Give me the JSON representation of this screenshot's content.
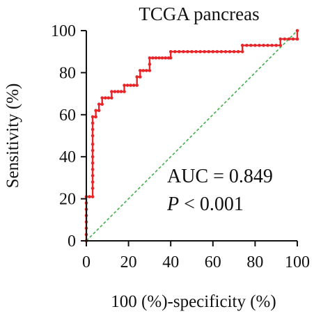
{
  "chart_data": {
    "type": "line",
    "title": "TCGA pancreas",
    "xlabel": "100 (%)-specificity (%)",
    "ylabel": "Sensitivity (%)",
    "xlim": [
      0,
      100
    ],
    "ylim": [
      0,
      100
    ],
    "x_ticks": [
      "0",
      "20",
      "40",
      "60",
      "80",
      "100"
    ],
    "y_ticks": [
      "0",
      "20",
      "40",
      "60",
      "80",
      "100"
    ],
    "grid": false,
    "annotations": {
      "auc": "AUC = 0.849",
      "p_symbol": "P",
      "p_rest": " < 0.001"
    },
    "colors": {
      "roc": "#e8262a",
      "reference": "#3fae49",
      "axis": "#111111"
    },
    "series": [
      {
        "values": [
          [
            0,
            0
          ],
          [
            0,
            3
          ],
          [
            0,
            6
          ],
          [
            0,
            9
          ],
          [
            0,
            12
          ],
          [
            0,
            15
          ],
          [
            0,
            18
          ],
          [
            0,
            21
          ],
          [
            1.5,
            21
          ],
          [
            3,
            21
          ],
          [
            3,
            25
          ],
          [
            3,
            28
          ],
          [
            3,
            31
          ],
          [
            3,
            34
          ],
          [
            3,
            37
          ],
          [
            3,
            40
          ],
          [
            3,
            43
          ],
          [
            3,
            46
          ],
          [
            3,
            50
          ],
          [
            3,
            53
          ],
          [
            3,
            56
          ],
          [
            3,
            59
          ],
          [
            4.5,
            59
          ],
          [
            4.5,
            62
          ],
          [
            6,
            62
          ],
          [
            6,
            65
          ],
          [
            7.5,
            65
          ],
          [
            7.5,
            68
          ],
          [
            9,
            68
          ],
          [
            10.5,
            68
          ],
          [
            12,
            68
          ],
          [
            12,
            71
          ],
          [
            13.5,
            71
          ],
          [
            15,
            71
          ],
          [
            16.5,
            71
          ],
          [
            18,
            71
          ],
          [
            18,
            74
          ],
          [
            19.5,
            74
          ],
          [
            21,
            74
          ],
          [
            22.5,
            74
          ],
          [
            24,
            74
          ],
          [
            24,
            78
          ],
          [
            25.5,
            78
          ],
          [
            25.5,
            81
          ],
          [
            27,
            81
          ],
          [
            28.5,
            81
          ],
          [
            30,
            81
          ],
          [
            30,
            84
          ],
          [
            30,
            87
          ],
          [
            31.5,
            87
          ],
          [
            33,
            87
          ],
          [
            34.5,
            87
          ],
          [
            36,
            87
          ],
          [
            37.5,
            87
          ],
          [
            39,
            87
          ],
          [
            40,
            87
          ],
          [
            40,
            90
          ],
          [
            42,
            90
          ],
          [
            44,
            90
          ],
          [
            46,
            90
          ],
          [
            48,
            90
          ],
          [
            50,
            90
          ],
          [
            52,
            90
          ],
          [
            54,
            90
          ],
          [
            56,
            90
          ],
          [
            58,
            90
          ],
          [
            60,
            90
          ],
          [
            62,
            90
          ],
          [
            64,
            90
          ],
          [
            66,
            90
          ],
          [
            68,
            90
          ],
          [
            70,
            90
          ],
          [
            72,
            90
          ],
          [
            74,
            90
          ],
          [
            74,
            93
          ],
          [
            76,
            93
          ],
          [
            78,
            93
          ],
          [
            80,
            93
          ],
          [
            82,
            93
          ],
          [
            84,
            93
          ],
          [
            86,
            93
          ],
          [
            88,
            93
          ],
          [
            90,
            93
          ],
          [
            92,
            93
          ],
          [
            92,
            96
          ],
          [
            94,
            96
          ],
          [
            96,
            96
          ],
          [
            98,
            96
          ],
          [
            100,
            96
          ],
          [
            100,
            100
          ]
        ]
      }
    ],
    "reference_line": [
      [
        0,
        0
      ],
      [
        100,
        100
      ]
    ]
  }
}
